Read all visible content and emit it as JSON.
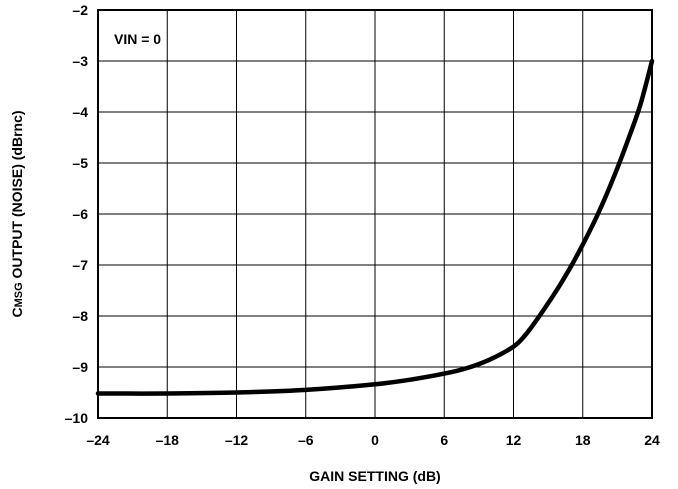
{
  "chart_data": {
    "type": "line",
    "title": "",
    "xlabel": "GAIN SETTING (dB)",
    "ylabel": {
      "prefix": "C",
      "subscript": "MSG",
      "rest": " OUTPUT (NOISE) (dBrnc)"
    },
    "xlim": [
      -24,
      24
    ],
    "ylim": [
      -10,
      -2
    ],
    "xticks": [
      -24,
      -18,
      -12,
      -6,
      0,
      6,
      12,
      18,
      24
    ],
    "yticks": [
      -2,
      -3,
      -4,
      -5,
      -6,
      -7,
      -8,
      -9,
      -10
    ],
    "xtick_labels": [
      "–24",
      "–18",
      "–12",
      "–6",
      "0",
      "6",
      "12",
      "18",
      "24"
    ],
    "ytick_labels": [
      "–2",
      "–3",
      "–4",
      "–5",
      "–6",
      "–7",
      "–8",
      "–9",
      "–10"
    ],
    "grid": true,
    "annotation": "VIN = 0",
    "series": [
      {
        "color": "#000000",
        "x": [
          -24,
          -18,
          -12,
          -6,
          0,
          3,
          6,
          8,
          10,
          12,
          13,
          14,
          15,
          16,
          17,
          18,
          19,
          20,
          21,
          22,
          23,
          24
        ],
        "y": [
          -9.52,
          -9.52,
          -9.5,
          -9.45,
          -9.34,
          -9.25,
          -9.13,
          -9.02,
          -8.85,
          -8.6,
          -8.38,
          -8.08,
          -7.75,
          -7.4,
          -7.02,
          -6.6,
          -6.15,
          -5.65,
          -5.1,
          -4.5,
          -3.85,
          -3.0
        ]
      }
    ]
  }
}
